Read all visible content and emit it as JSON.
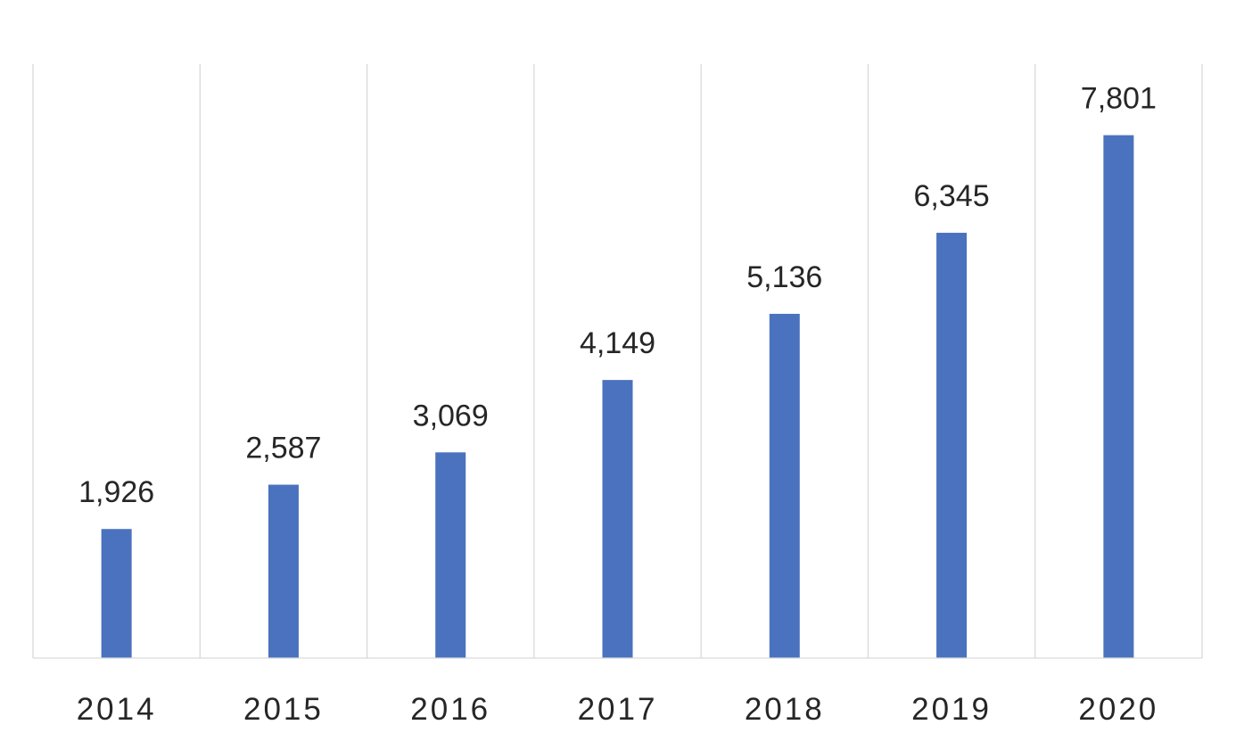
{
  "chart_data": {
    "type": "bar",
    "title": "",
    "xlabel": "",
    "ylabel": "",
    "categories": [
      "2014",
      "2015",
      "2016",
      "2017",
      "2018",
      "2019",
      "2020"
    ],
    "series": [
      {
        "values": [
          1926,
          2587,
          3069,
          4149,
          5136,
          6345,
          7801
        ],
        "data_labels": [
          "1,926",
          "2,587",
          "3,069",
          "4,149",
          "5,136",
          "6,345",
          "7,801"
        ],
        "color": "#4a72be"
      }
    ],
    "ylim": [
      0,
      8860
    ],
    "grid": "vertical-category-separators",
    "legend": "none",
    "y_axis_visible": false
  }
}
